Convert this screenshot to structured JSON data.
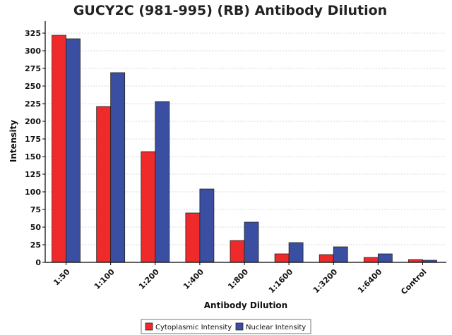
{
  "chart_data": {
    "type": "bar",
    "title": "GUCY2C (981-995) (RB) Antibody Dilution",
    "xlabel": "Antibody Dilution",
    "ylabel": "Intensity",
    "categories": [
      "1:50",
      "1:100",
      "1:200",
      "1:400",
      "1:800",
      "1:1600",
      "1:3200",
      "1:6400",
      "Control"
    ],
    "series": [
      {
        "name": "Cytoplasmic Intensity",
        "color": "#ee2a2a",
        "values": [
          322,
          221,
          157,
          70,
          31,
          12,
          11,
          7,
          4
        ]
      },
      {
        "name": "Nuclear Intensity",
        "color": "#3a4fa1",
        "values": [
          317,
          269,
          228,
          104,
          57,
          28,
          22,
          12,
          3
        ]
      }
    ],
    "ylim": [
      0,
      340
    ],
    "yticks": [
      0,
      25,
      50,
      75,
      100,
      125,
      150,
      175,
      200,
      225,
      250,
      275,
      300,
      325
    ],
    "grid": true,
    "legend_position": "bottom"
  }
}
